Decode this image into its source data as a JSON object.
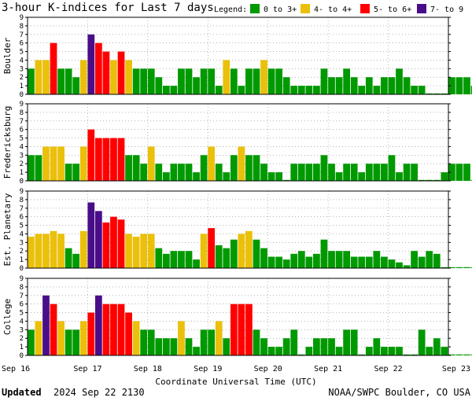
{
  "header": {
    "title": "3-hour K-indices for Last 7 days",
    "legend_label": "Legend:",
    "legend": [
      {
        "label": "0 to 3+",
        "color": "#009900"
      },
      {
        "label": "4- to 4+",
        "color": "#ebc00a"
      },
      {
        "label": "5- to 6+",
        "color": "#ff0000"
      },
      {
        "label": "7- to 9",
        "color": "#4a0d8a"
      }
    ]
  },
  "footer": {
    "updated_label": "Updated",
    "updated_value": "2024 Sep 22 2130",
    "source": "NOAA/SWPC Boulder, CO USA"
  },
  "chart_data": {
    "type": "bar",
    "xlabel": "Coordinate Universal Time (UTC)",
    "x_ticks": [
      "Sep 16",
      "Sep 17",
      "Sep 18",
      "Sep 19",
      "Sep 20",
      "Sep 21",
      "Sep 22",
      "Sep 23"
    ],
    "y_ticks": [
      0,
      1,
      2,
      3,
      4,
      5,
      6,
      7,
      8,
      9
    ],
    "ylim": [
      0,
      9
    ],
    "bar_interval_hours": 3,
    "grid": "dotted vertical at midnight, dotted horizontal",
    "color_scale": {
      "green": "0 to 3+",
      "yellow": "4- to 4+",
      "red": "5- to 6+",
      "purple": "7- to 9"
    },
    "series": [
      {
        "name": "Boulder",
        "values": [
          3,
          4,
          4,
          6,
          3,
          3,
          2,
          4,
          7,
          6,
          5,
          4,
          5,
          4,
          3,
          3,
          3,
          2,
          1,
          1,
          3,
          3,
          2,
          3,
          3,
          1,
          4,
          3,
          1,
          3,
          3,
          4,
          3,
          3,
          2,
          1,
          1,
          1,
          1,
          3,
          2,
          2,
          3,
          2,
          1,
          2,
          1,
          2,
          2,
          3,
          2,
          1,
          1,
          0,
          0,
          0,
          2,
          2,
          2,
          1,
          0
        ]
      },
      {
        "name": "Fredericksburg",
        "values": [
          3,
          3,
          4,
          4,
          4,
          2,
          2,
          4,
          6,
          5,
          5,
          5,
          5,
          3,
          3,
          2,
          4,
          2,
          1,
          2,
          2,
          2,
          1,
          3,
          4,
          2,
          1,
          3,
          4,
          3,
          3,
          2,
          1,
          1,
          0,
          2,
          2,
          2,
          2,
          3,
          2,
          1,
          2,
          2,
          1,
          2,
          2,
          2,
          3,
          1,
          2,
          2,
          0,
          0,
          0,
          1,
          2,
          2,
          2,
          0,
          0
        ]
      },
      {
        "name": "Est. Planetary",
        "values": [
          3.67,
          4,
          4,
          4.33,
          4,
          2.33,
          1.67,
          4.33,
          7.67,
          6.67,
          5.33,
          6,
          5.67,
          4,
          3.67,
          4,
          4,
          2.33,
          1.67,
          2,
          2,
          2,
          1,
          4,
          4.67,
          2.67,
          2.33,
          3.33,
          4,
          4.33,
          3.33,
          2.33,
          1.33,
          1.33,
          1,
          1.67,
          2,
          1.33,
          1.67,
          3.33,
          2,
          2,
          2,
          1.33,
          1.33,
          1.33,
          2,
          1.33,
          1,
          0.67,
          0.33,
          2,
          1.33,
          2,
          1.67,
          0,
          0,
          0,
          0,
          0,
          0
        ]
      },
      {
        "name": "College",
        "values": [
          3,
          4,
          7,
          6,
          4,
          3,
          3,
          4,
          5,
          7,
          6,
          6,
          6,
          5,
          4,
          3,
          3,
          2,
          2,
          2,
          4,
          2,
          1,
          3,
          3,
          4,
          2,
          6,
          6,
          6,
          3,
          2,
          1,
          1,
          2,
          3,
          0,
          1,
          2,
          2,
          2,
          1,
          3,
          3,
          0,
          1,
          2,
          1,
          1,
          1,
          0,
          0,
          3,
          1,
          2,
          1,
          0,
          0,
          0,
          0,
          0
        ]
      }
    ]
  }
}
